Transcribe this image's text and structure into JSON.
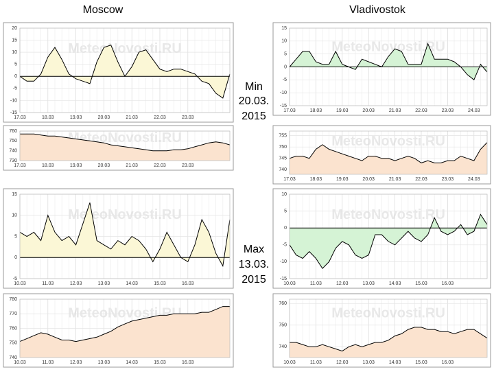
{
  "columns": [
    "Moscow",
    "Vladivostok"
  ],
  "notes": [
    [
      "Min",
      "20.03.",
      "2015"
    ],
    [
      "Max",
      "13.03.",
      "2015"
    ]
  ],
  "chart_data": [
    {
      "type": "line",
      "watermark": "MeteoNovosti.RU",
      "color": "#000000",
      "fill": "#fbf7d6",
      "categories": [
        "17.03",
        null,
        null,
        null,
        "18.03",
        null,
        null,
        null,
        "19.03",
        null,
        null,
        null,
        "20.03",
        null,
        null,
        null,
        "21.03",
        null,
        null,
        null,
        "22.03",
        null,
        null,
        null,
        "23.03",
        null,
        null,
        null,
        null,
        null,
        null
      ],
      "values": [
        0,
        -2,
        -2,
        1,
        8,
        12,
        7,
        1,
        -1,
        -2,
        -3,
        6,
        12,
        13,
        6,
        0,
        4,
        10,
        11,
        7,
        3,
        2,
        3,
        3,
        2,
        1,
        -2,
        -3,
        -7,
        -9,
        1
      ],
      "ylim": [
        -15,
        20
      ],
      "yticks": [
        -15,
        -10,
        -5,
        0,
        5,
        10,
        15,
        20
      ]
    },
    {
      "type": "line",
      "watermark": "MeteoNovosti.RU",
      "color": "#000000",
      "fill": "#fbe3cf",
      "categories": [
        "17.03",
        null,
        null,
        null,
        "18.03",
        null,
        null,
        null,
        "19.03",
        null,
        null,
        null,
        "20.03",
        null,
        null,
        null,
        "21.03",
        null,
        null,
        null,
        "22.03",
        null,
        null,
        null,
        "23.03",
        null,
        null,
        null,
        null,
        null,
        null
      ],
      "values": [
        757,
        757,
        757,
        756,
        755,
        755,
        754,
        753,
        752,
        751,
        750,
        749,
        748,
        746,
        745,
        744,
        743,
        742,
        741,
        740,
        740,
        740,
        741,
        741,
        742,
        744,
        746,
        748,
        749,
        748,
        746
      ],
      "ylim": [
        730,
        760
      ],
      "yticks": [
        730,
        740,
        750,
        760
      ]
    },
    {
      "type": "line",
      "watermark": "MeteoNovosti.RU",
      "color": "#000000",
      "fill": "#d5f3d5",
      "categories": [
        "17.03",
        null,
        null,
        null,
        "18.03",
        null,
        null,
        null,
        "19.03",
        null,
        null,
        null,
        "20.03",
        null,
        null,
        null,
        "21.03",
        null,
        null,
        null,
        "22.03",
        null,
        null,
        null,
        "23.03",
        null,
        null,
        null,
        "24.03",
        null,
        null
      ],
      "values": [
        0,
        3,
        6,
        6,
        2,
        1,
        1,
        6,
        1,
        0,
        -1,
        3,
        2,
        1,
        0,
        4,
        7,
        6,
        1,
        1,
        1,
        9,
        3,
        3,
        3,
        2,
        0,
        -3,
        -5,
        1,
        -2
      ],
      "ylim": [
        -15,
        15
      ],
      "yticks": [
        -15,
        -10,
        -5,
        0,
        5,
        10,
        15
      ]
    },
    {
      "type": "line",
      "watermark": "MeteoNovosti.RU",
      "color": "#000000",
      "fill": "#fbe3cf",
      "categories": [
        "17.03",
        null,
        null,
        null,
        "18.03",
        null,
        null,
        null,
        "19.03",
        null,
        null,
        null,
        "20.03",
        null,
        null,
        null,
        "21.03",
        null,
        null,
        null,
        "22.03",
        null,
        null,
        null,
        "23.03",
        null,
        null,
        null,
        "24.03",
        null,
        null
      ],
      "values": [
        745,
        746,
        746,
        745,
        749,
        751,
        749,
        748,
        747,
        746,
        745,
        744,
        746,
        746,
        745,
        745,
        744,
        745,
        746,
        745,
        743,
        744,
        743,
        743,
        744,
        744,
        746,
        745,
        744,
        749,
        752
      ],
      "ylim": [
        738,
        757
      ],
      "yticks": [
        740,
        745,
        750,
        755
      ]
    },
    {
      "type": "line",
      "watermark": "MeteoNovosti.RU",
      "color": "#000000",
      "fill": "#fbf7d6",
      "categories": [
        "10.03",
        null,
        null,
        null,
        "11.03",
        null,
        null,
        null,
        "12.03",
        null,
        null,
        null,
        "13.03",
        null,
        null,
        null,
        "14.03",
        null,
        null,
        null,
        "15.03",
        null,
        null,
        null,
        "16.03",
        null,
        null,
        null,
        null,
        null,
        null
      ],
      "values": [
        6,
        5,
        6,
        4,
        10,
        6,
        4,
        5,
        3,
        8,
        13,
        4,
        3,
        2,
        4,
        3,
        5,
        4,
        2,
        -1,
        2,
        6,
        3,
        0,
        -1,
        3,
        9,
        6,
        1,
        -2,
        9
      ],
      "ylim": [
        -5,
        15
      ],
      "yticks": [
        -5,
        0,
        5,
        10,
        15
      ]
    },
    {
      "type": "line",
      "watermark": "MeteoNovosti.RU",
      "color": "#000000",
      "fill": "#fbe3cf",
      "categories": [
        "10.03",
        null,
        null,
        null,
        "11.03",
        null,
        null,
        null,
        "12.03",
        null,
        null,
        null,
        "13.03",
        null,
        null,
        null,
        "14.03",
        null,
        null,
        null,
        "15.03",
        null,
        null,
        null,
        "16.03",
        null,
        null,
        null,
        null,
        null,
        null
      ],
      "values": [
        751,
        753,
        755,
        757,
        756,
        754,
        752,
        752,
        751,
        752,
        753,
        754,
        756,
        758,
        761,
        763,
        765,
        766,
        767,
        768,
        769,
        769,
        770,
        770,
        770,
        770,
        771,
        771,
        773,
        775,
        775
      ],
      "ylim": [
        740,
        780
      ],
      "yticks": [
        740,
        750,
        760,
        770,
        780
      ]
    },
    {
      "type": "line",
      "watermark": "MeteoNovosti.RU",
      "color": "#000000",
      "fill": "#d5f3d5",
      "categories": [
        "10.03",
        null,
        null,
        null,
        "11.03",
        null,
        null,
        null,
        "12.03",
        null,
        null,
        null,
        "13.03",
        null,
        null,
        null,
        "14.03",
        null,
        null,
        null,
        "15.03",
        null,
        null,
        null,
        "16.03",
        null,
        null,
        null,
        null,
        null,
        null
      ],
      "values": [
        -5,
        -8,
        -9,
        -7,
        -9,
        -12,
        -10,
        -6,
        -4,
        -5,
        -8,
        -9,
        -8,
        -2,
        -2,
        -4,
        -5,
        -3,
        -1,
        -3,
        -4,
        -2,
        3,
        -1,
        -2,
        -1,
        1,
        -2,
        -1,
        4,
        1
      ],
      "ylim": [
        -15,
        10
      ],
      "yticks": [
        -15,
        -10,
        -5,
        0,
        5,
        10
      ]
    },
    {
      "type": "line",
      "watermark": "MeteoNovosti.RU",
      "color": "#000000",
      "fill": "#fbe3cf",
      "categories": [
        "10.03",
        null,
        null,
        null,
        "11.03",
        null,
        null,
        null,
        "12.03",
        null,
        null,
        null,
        "13.03",
        null,
        null,
        null,
        "14.03",
        null,
        null,
        null,
        "15.03",
        null,
        null,
        null,
        "16.03",
        null,
        null,
        null,
        null,
        null,
        null
      ],
      "values": [
        742,
        742,
        741,
        740,
        740,
        741,
        740,
        739,
        738,
        740,
        741,
        740,
        741,
        742,
        742,
        743,
        745,
        746,
        748,
        749,
        749,
        748,
        748,
        747,
        747,
        746,
        747,
        748,
        748,
        746,
        744
      ],
      "ylim": [
        735,
        762
      ],
      "yticks": [
        740,
        750,
        760
      ]
    }
  ]
}
